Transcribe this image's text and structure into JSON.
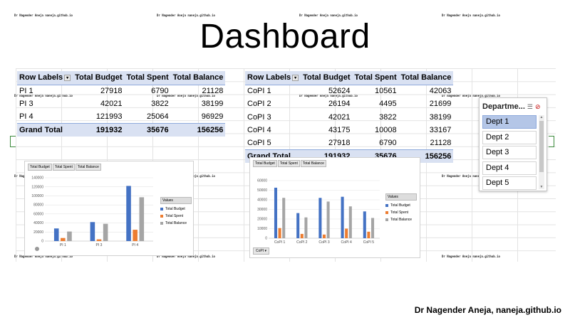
{
  "watermark": "Dr Nagender Aneja naneja.github.io",
  "title": "Dashboard",
  "footer": "Dr Nagender Aneja, naneja.github.io",
  "pivot_pi": {
    "headers": [
      "Row Labels",
      "Total Budget",
      "Total Spent",
      "Total Balance"
    ],
    "rows": [
      [
        "PI 1",
        "27918",
        "6790",
        "21128"
      ],
      [
        "PI 3",
        "42021",
        "3822",
        "38199"
      ],
      [
        "PI 4",
        "121993",
        "25064",
        "96929"
      ]
    ],
    "total": [
      "Grand Total",
      "191932",
      "35676",
      "156256"
    ]
  },
  "pivot_copi": {
    "headers": [
      "Row Labels",
      "Total Budget",
      "Total Spent",
      "Total Balance"
    ],
    "rows": [
      [
        "CoPI 1",
        "52624",
        "10561",
        "42063"
      ],
      [
        "CoPI 2",
        "26194",
        "4495",
        "21699"
      ],
      [
        "CoPI 3",
        "42021",
        "3822",
        "38199"
      ],
      [
        "CoPI 4",
        "43175",
        "10008",
        "33167"
      ],
      [
        "CoPI 5",
        "27918",
        "6790",
        "21128"
      ]
    ],
    "total": [
      "Grand Total",
      "191932",
      "35676",
      "156256"
    ]
  },
  "chart_buttons": [
    "Total Budget",
    "Total Spent",
    "Total Balance"
  ],
  "legend_title": "Values",
  "colors": {
    "budget": "#4472c4",
    "spent": "#ed7d31",
    "balance": "#a5a5a5"
  },
  "chart_data": [
    {
      "type": "bar",
      "categories": [
        "PI 1",
        "PI 3",
        "PI 4"
      ],
      "series": [
        {
          "name": "Total Budget",
          "values": [
            27918,
            42021,
            121993
          ]
        },
        {
          "name": "Total Spent",
          "values": [
            6790,
            3822,
            25064
          ]
        },
        {
          "name": "Total Balance",
          "values": [
            21128,
            38199,
            96929
          ]
        }
      ],
      "yticks": [
        "0",
        "20000",
        "40000",
        "60000",
        "80000",
        "100000",
        "120000",
        "140000"
      ],
      "ylim": [
        0,
        140000
      ],
      "legend": "right"
    },
    {
      "type": "bar",
      "categories": [
        "CoPI 1",
        "CoPI 2",
        "CoPI 3",
        "CoPI 4",
        "CoPI 5"
      ],
      "series": [
        {
          "name": "Total Budget",
          "values": [
            52624,
            26194,
            42021,
            43175,
            27918
          ]
        },
        {
          "name": "Total Spent",
          "values": [
            10561,
            4495,
            3822,
            10008,
            6790
          ]
        },
        {
          "name": "Total Balance",
          "values": [
            42063,
            21699,
            38199,
            33167,
            21128
          ]
        }
      ],
      "yticks": [
        "0",
        "10000",
        "20000",
        "30000",
        "40000",
        "50000",
        "60000"
      ],
      "ylim": [
        0,
        60000
      ],
      "legend": "right",
      "filter_label": "CoPI"
    }
  ],
  "slicer": {
    "title": "Departme...",
    "items": [
      "Dept 1",
      "Dept 2",
      "Dept 3",
      "Dept 4",
      "Dept 5"
    ],
    "selected": 0
  }
}
